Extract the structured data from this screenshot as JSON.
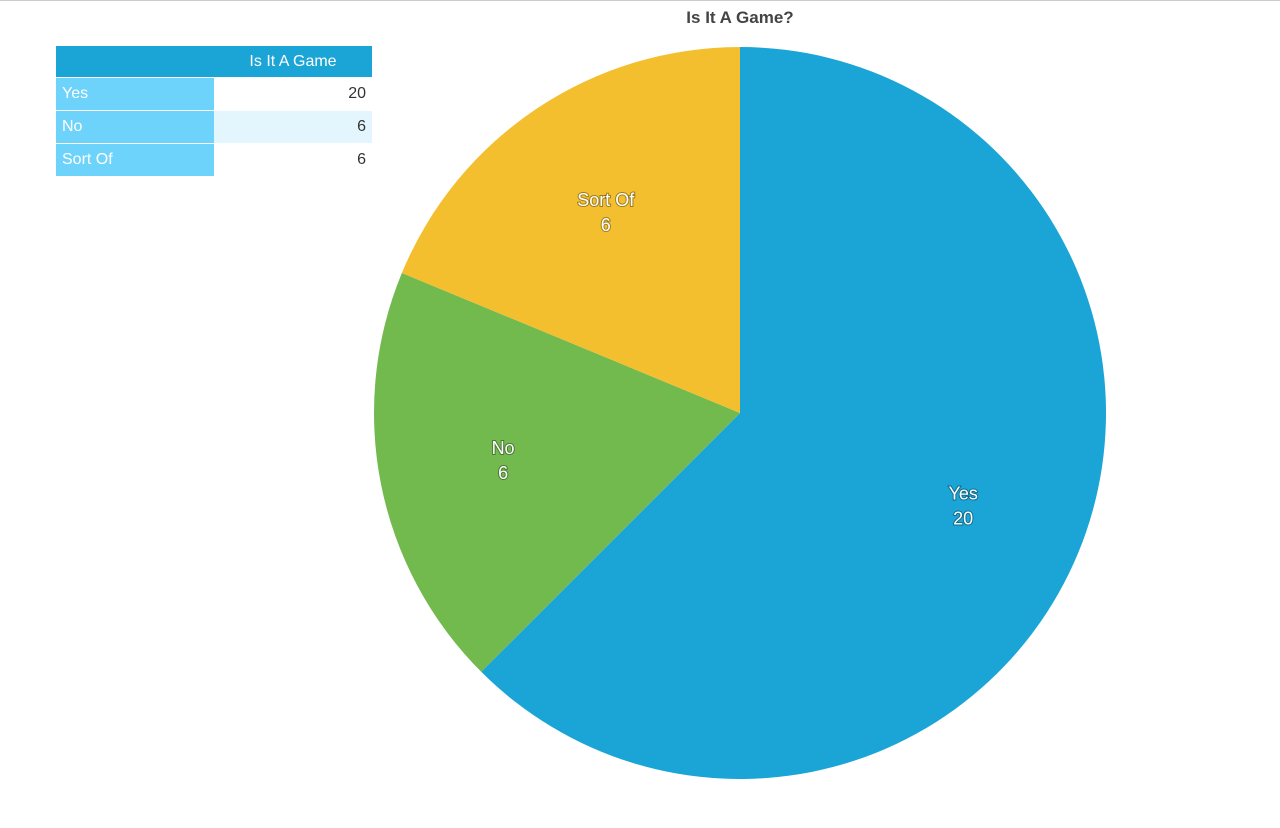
{
  "chart_data": {
    "type": "pie",
    "title": "Is It A Game?",
    "categories": [
      "Yes",
      "No",
      "Sort Of"
    ],
    "values": [
      20,
      6,
      6
    ],
    "colors": [
      "#1ba5d6",
      "#72b94e",
      "#f4bf2e"
    ]
  },
  "table": {
    "header": "Is It A Game"
  }
}
